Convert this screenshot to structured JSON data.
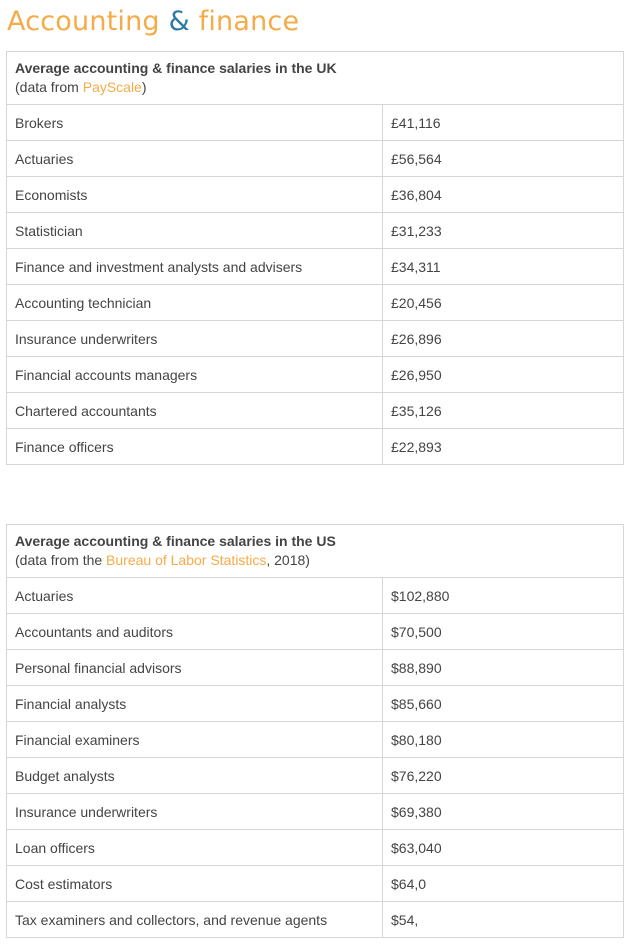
{
  "title": {
    "part1": "Accounting",
    "amp": "&",
    "part2": "finance"
  },
  "uk": {
    "heading": "Average accounting & finance salaries in the UK",
    "source_prefix": "(data from ",
    "source_link": "PayScale",
    "source_suffix": ")",
    "rows": [
      {
        "job": "Brokers",
        "salary": "£41,116"
      },
      {
        "job": "Actuaries",
        "salary": "£56,564"
      },
      {
        "job": "Economists",
        "salary": "£36,804"
      },
      {
        "job": "Statistician",
        "salary": "£31,233"
      },
      {
        "job": "Finance and investment analysts and advisers",
        "salary": "£34,311"
      },
      {
        "job": "Accounting technician",
        "salary": "£20,456"
      },
      {
        "job": "Insurance underwriters",
        "salary": "£26,896"
      },
      {
        "job": "Financial accounts managers",
        "salary": "£26,950"
      },
      {
        "job": "Chartered accountants",
        "salary": "£35,126"
      },
      {
        "job": "Finance officers",
        "salary": "£22,893"
      }
    ]
  },
  "us": {
    "heading": "Average accounting & finance salaries in the US",
    "source_prefix": "(data from the ",
    "source_link": "Bureau of Labor Statistics",
    "source_suffix": ", 2018)",
    "rows": [
      {
        "job": "Actuaries",
        "salary": "$102,880"
      },
      {
        "job": "Accountants and auditors",
        "salary": "$70,500"
      },
      {
        "job": "Personal financial advisors",
        "salary": "$88,890"
      },
      {
        "job": "Financial analysts",
        "salary": "$85,660"
      },
      {
        "job": "Financial examiners",
        "salary": "$80,180"
      },
      {
        "job": "Budget analysts",
        "salary": "$76,220"
      },
      {
        "job": "Insurance underwriters",
        "salary": "$69,380"
      },
      {
        "job": "Loan officers",
        "salary": "$63,040"
      },
      {
        "job": "Cost estimators",
        "salary": "$64,0"
      },
      {
        "job": "Tax examiners and collectors, and revenue agents",
        "salary": "$54,"
      }
    ]
  },
  "colors": {
    "accent": "#f5ab47",
    "ampersand": "#2a7aa3",
    "text": "#444444",
    "border": "#d6d6d6"
  }
}
